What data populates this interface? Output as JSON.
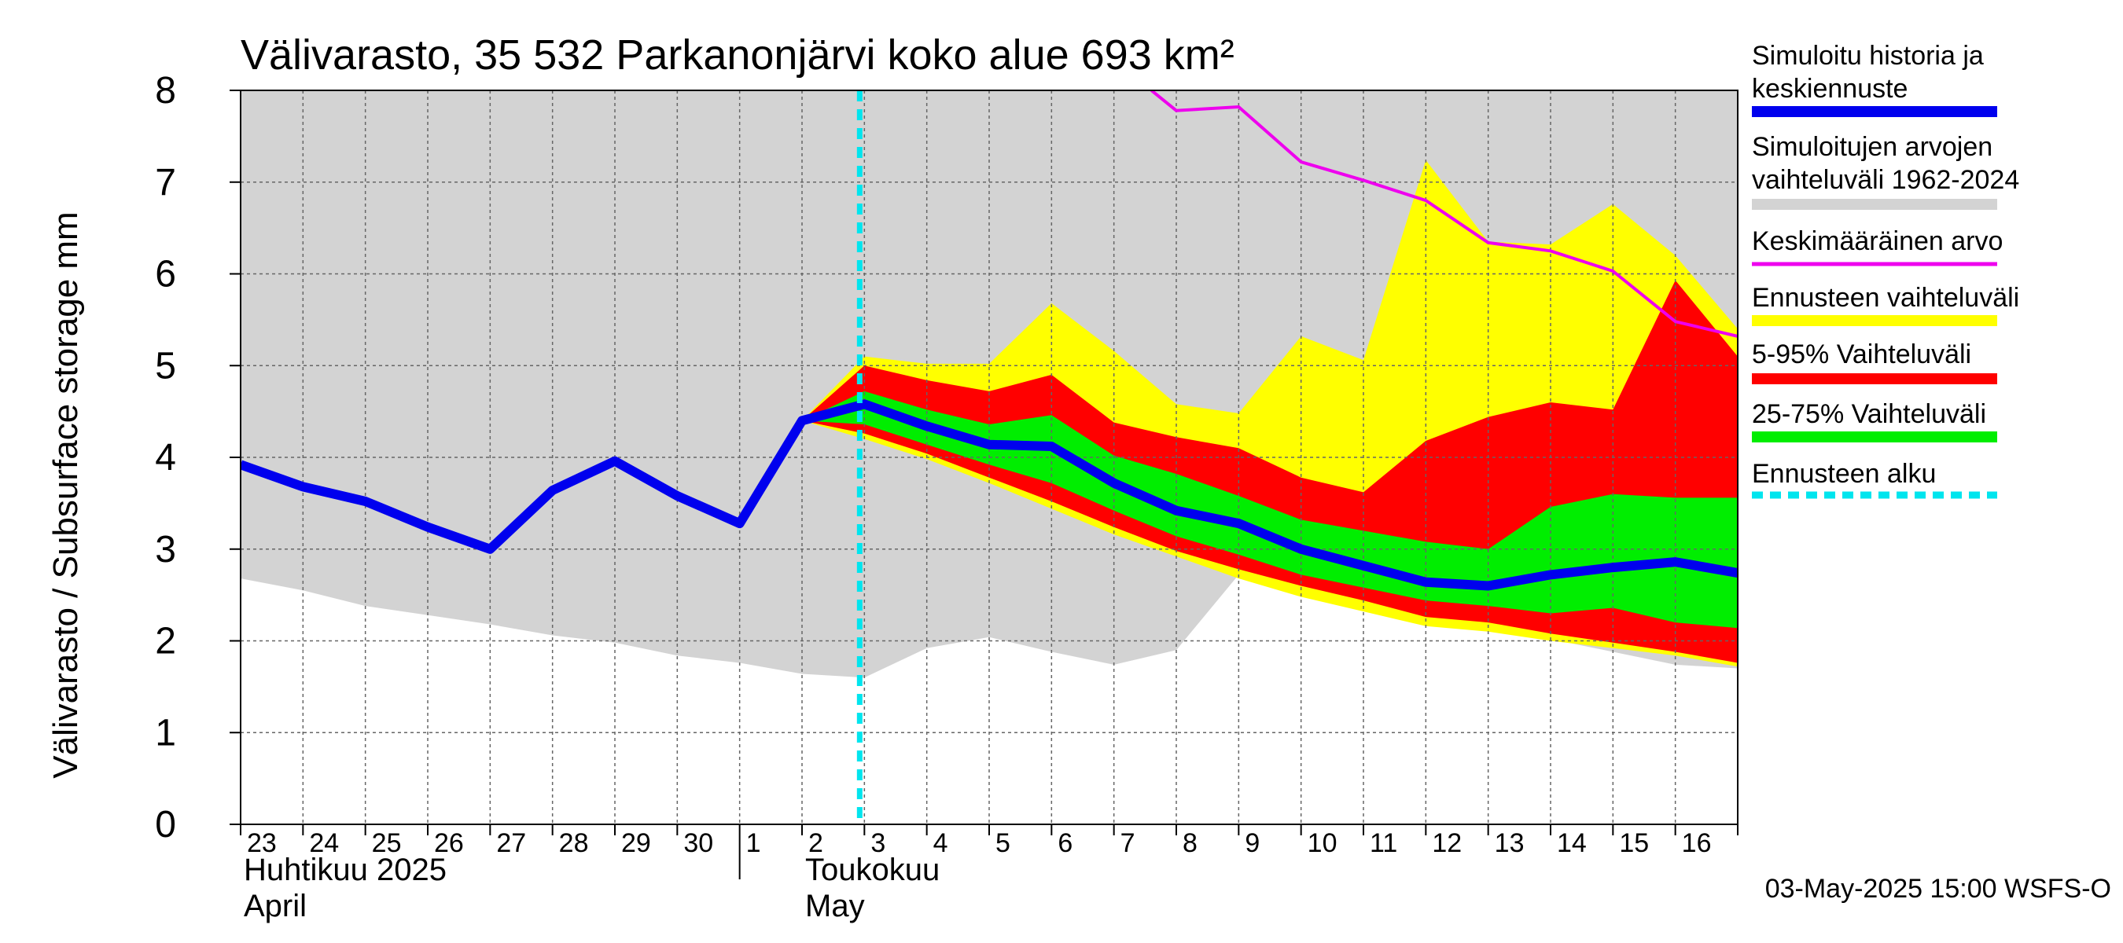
{
  "chart_data": {
    "type": "area",
    "title": "Välivarasto, 35 532 Parkanonjärvi koko alue 693 km²",
    "ylabel": "Välivarasto / Subsurface storage  mm",
    "ylim": [
      0,
      8
    ],
    "yticks": [
      0,
      1,
      2,
      3,
      4,
      5,
      6,
      7,
      8
    ],
    "x_start_date": "2025-04-23",
    "x_end_date": "2025-05-17",
    "day_labels": [
      "23",
      "24",
      "25",
      "26",
      "27",
      "28",
      "29",
      "30",
      "1",
      "2",
      "3",
      "4",
      "5",
      "6",
      "7",
      "8",
      "9",
      "10",
      "11",
      "12",
      "13",
      "14",
      "15",
      "16"
    ],
    "month_labels": [
      {
        "line1": "Huhtikuu  2025",
        "line2": "April",
        "day_index": 0
      },
      {
        "line1": "Toukokuu",
        "line2": "May",
        "day_index": 9
      }
    ],
    "forecast_start_index": 10,
    "footer": "03-May-2025 15:00 WSFS-O",
    "legend": [
      {
        "label": "Simuloitu historia ja keskiennuste",
        "color": "#0000ee",
        "style": "thick"
      },
      {
        "label": "Simuloitujen arvojen vaihteluväli 1962-2024",
        "color": "#d3d3d3",
        "style": "band"
      },
      {
        "label": "Keskimääräinen arvo",
        "color": "#ee00ee",
        "style": "line"
      },
      {
        "label": "Ennusteen vaihteluväli",
        "color": "#ffff00",
        "style": "band"
      },
      {
        "label": "5-95% Vaihteluväli",
        "color": "#ff0000",
        "style": "band"
      },
      {
        "label": "25-75% Vaihteluväli",
        "color": "#00ee00",
        "style": "band"
      },
      {
        "label": "Ennusteen alku",
        "color": "#00e5ee",
        "style": "dashed"
      }
    ],
    "historical_range": {
      "x": [
        0,
        1,
        2,
        3,
        4,
        5,
        6,
        7,
        8,
        9,
        10,
        11,
        12,
        13,
        14,
        15,
        16,
        17,
        18,
        19,
        20,
        21,
        22,
        23,
        24
      ],
      "lower": [
        2.68,
        2.55,
        2.38,
        2.28,
        2.18,
        2.06,
        1.98,
        1.84,
        1.76,
        1.64,
        1.6,
        1.92,
        2.04,
        1.88,
        1.74,
        1.9,
        2.72,
        2.58,
        2.42,
        2.28,
        2.18,
        2.02,
        1.88,
        1.74,
        1.7
      ],
      "upper": [
        8,
        8,
        8,
        8,
        8,
        8,
        8,
        8,
        8,
        8,
        8,
        8,
        8,
        8,
        8,
        8,
        8,
        8,
        8,
        8,
        8,
        8,
        8,
        8,
        8
      ]
    },
    "mean": {
      "x": [
        14.6,
        15,
        16,
        17,
        18,
        19,
        20,
        21,
        22,
        23,
        24
      ],
      "values": [
        8.0,
        7.78,
        7.82,
        7.22,
        7.02,
        6.8,
        6.34,
        6.25,
        6.03,
        5.48,
        5.32
      ]
    },
    "forecast_range": {
      "x": [
        9,
        10,
        11,
        12,
        13,
        14,
        15,
        16,
        17,
        18,
        19,
        20,
        21,
        22,
        23,
        24
      ],
      "lower": [
        4.4,
        4.2,
        3.98,
        3.72,
        3.44,
        3.16,
        2.92,
        2.68,
        2.48,
        2.32,
        2.16,
        2.1,
        2.0,
        1.92,
        1.84,
        1.72
      ],
      "upper": [
        4.4,
        5.1,
        5.02,
        5.02,
        5.68,
        5.16,
        4.58,
        4.48,
        5.32,
        5.06,
        7.24,
        6.35,
        6.32,
        6.76,
        6.2,
        5.4
      ]
    },
    "p5_95": {
      "x": [
        9,
        10,
        11,
        12,
        13,
        14,
        15,
        16,
        17,
        18,
        19,
        20,
        21,
        22,
        23,
        24
      ],
      "lower": [
        4.4,
        4.26,
        4.04,
        3.78,
        3.52,
        3.24,
        2.98,
        2.78,
        2.6,
        2.44,
        2.26,
        2.2,
        2.08,
        1.98,
        1.88,
        1.76
      ],
      "upper": [
        4.4,
        5.0,
        4.84,
        4.72,
        4.9,
        4.38,
        4.22,
        4.1,
        3.78,
        3.62,
        4.18,
        4.44,
        4.6,
        4.52,
        5.93,
        5.1
      ]
    },
    "p25_75": {
      "x": [
        9,
        10,
        11,
        12,
        13,
        14,
        15,
        16,
        17,
        18,
        19,
        20,
        21,
        22,
        23,
        24
      ],
      "lower": [
        4.4,
        4.36,
        4.14,
        3.92,
        3.72,
        3.42,
        3.14,
        2.94,
        2.72,
        2.58,
        2.44,
        2.38,
        2.3,
        2.36,
        2.2,
        2.14
      ],
      "upper": [
        4.4,
        4.72,
        4.52,
        4.36,
        4.46,
        4.02,
        3.82,
        3.58,
        3.32,
        3.2,
        3.08,
        3.0,
        3.46,
        3.6,
        3.56,
        3.56
      ]
    },
    "median": {
      "x": [
        0,
        1,
        2,
        3,
        4,
        5,
        6,
        7,
        8,
        9,
        10,
        11,
        12,
        13,
        14,
        15,
        16,
        17,
        18,
        19,
        20,
        21,
        22,
        23,
        24
      ],
      "values": [
        3.92,
        3.68,
        3.52,
        3.24,
        3.0,
        3.64,
        3.96,
        3.58,
        3.28,
        4.4,
        4.58,
        4.34,
        4.14,
        4.12,
        3.72,
        3.42,
        3.28,
        3.0,
        2.82,
        2.64,
        2.6,
        2.72,
        2.8,
        2.86,
        2.74
      ]
    }
  }
}
